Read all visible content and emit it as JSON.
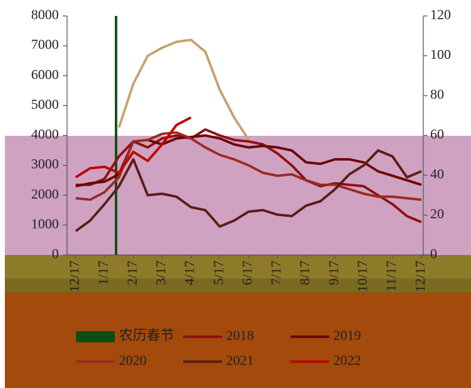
{
  "chart_data": {
    "type": "line",
    "x": [
      0,
      0.5,
      1,
      1.5,
      2,
      2.5,
      3,
      3.5,
      4,
      4.5,
      5,
      5.5,
      6,
      6.5,
      7,
      7.5,
      8,
      8.5,
      9,
      9.5,
      10,
      10.5,
      11,
      11.5,
      12
    ],
    "xlim": [
      -0.3,
      12.5
    ],
    "xticks": [
      {
        "value": 0,
        "label": "12/17"
      },
      {
        "value": 1,
        "label": "1/17"
      },
      {
        "value": 2,
        "label": "2/17"
      },
      {
        "value": 3,
        "label": "3/17"
      },
      {
        "value": 4,
        "label": "4/17"
      },
      {
        "value": 5,
        "label": "5/17"
      },
      {
        "value": 6,
        "label": "6/17"
      },
      {
        "value": 7,
        "label": "7/17"
      },
      {
        "value": 8,
        "label": "8/17"
      },
      {
        "value": 9,
        "label": "9/17"
      },
      {
        "value": 10,
        "label": "10/17"
      },
      {
        "value": 11,
        "label": "11/17"
      },
      {
        "value": 12,
        "label": "12/17"
      }
    ],
    "ylim": [
      0,
      8000
    ],
    "yticks": [
      0,
      1000,
      2000,
      3000,
      4000,
      5000,
      6000,
      7000,
      8000
    ],
    "y2lim": [
      0,
      120
    ],
    "y2ticks": [
      0,
      20,
      40,
      60,
      80,
      100,
      120
    ],
    "legend": "bottom",
    "markers": [
      {
        "name": "农历春节",
        "color": "#0b4d12",
        "x": 1.4
      }
    ],
    "series": [
      {
        "name": "2018",
        "color": "#8b1010",
        "values": [
          2350,
          2350,
          2550,
          3300,
          3800,
          3600,
          3900,
          4000,
          3900,
          4200,
          4000,
          3850,
          3800,
          3700,
          3400,
          3000,
          2500,
          2300,
          2400,
          2350,
          2300,
          2000,
          1700,
          1300,
          1100
        ]
      },
      {
        "name": "2019",
        "color": "#6e0000",
        "values": [
          2300,
          2400,
          2450,
          2700,
          3800,
          3850,
          3700,
          3900,
          3950,
          4000,
          3900,
          3700,
          3600,
          3650,
          3600,
          3500,
          3100,
          3050,
          3200,
          3200,
          3100,
          2800,
          2650,
          2500,
          2350
        ]
      },
      {
        "name": "2020",
        "color": "#9b2a20",
        "values": [
          1900,
          1850,
          2100,
          2600,
          3800,
          3850,
          4050,
          4100,
          3900,
          3600,
          3350,
          3200,
          3000,
          2750,
          2650,
          2700,
          2500,
          2350,
          2350,
          2200,
          2050,
          1950,
          1950,
          1900,
          1850
        ]
      },
      {
        "name": "2021",
        "color": "#5a1c14",
        "values": [
          800,
          1150,
          1700,
          2300,
          3200,
          2000,
          2050,
          1950,
          1600,
          1500,
          950,
          1150,
          1450,
          1500,
          1350,
          1300,
          1650,
          1800,
          2200,
          2700,
          3000,
          3500,
          3300,
          2600,
          2800
        ]
      },
      {
        "name": "2022",
        "color": "#c00000",
        "values": [
          2600,
          2900,
          2950,
          2750,
          3450,
          3150,
          3700,
          4350,
          4600,
          null,
          null,
          null,
          null,
          null,
          null,
          null,
          null,
          null,
          null,
          null,
          null,
          null,
          null,
          null,
          null
        ]
      },
      {
        "color": "#c8a070",
        "axis": "y2",
        "values": [
          null,
          null,
          null,
          64,
          86,
          100,
          104,
          107,
          108,
          102,
          83,
          69,
          58,
          null,
          null,
          null,
          null,
          null,
          null,
          null,
          null,
          null,
          null,
          null,
          null
        ]
      }
    ]
  }
}
